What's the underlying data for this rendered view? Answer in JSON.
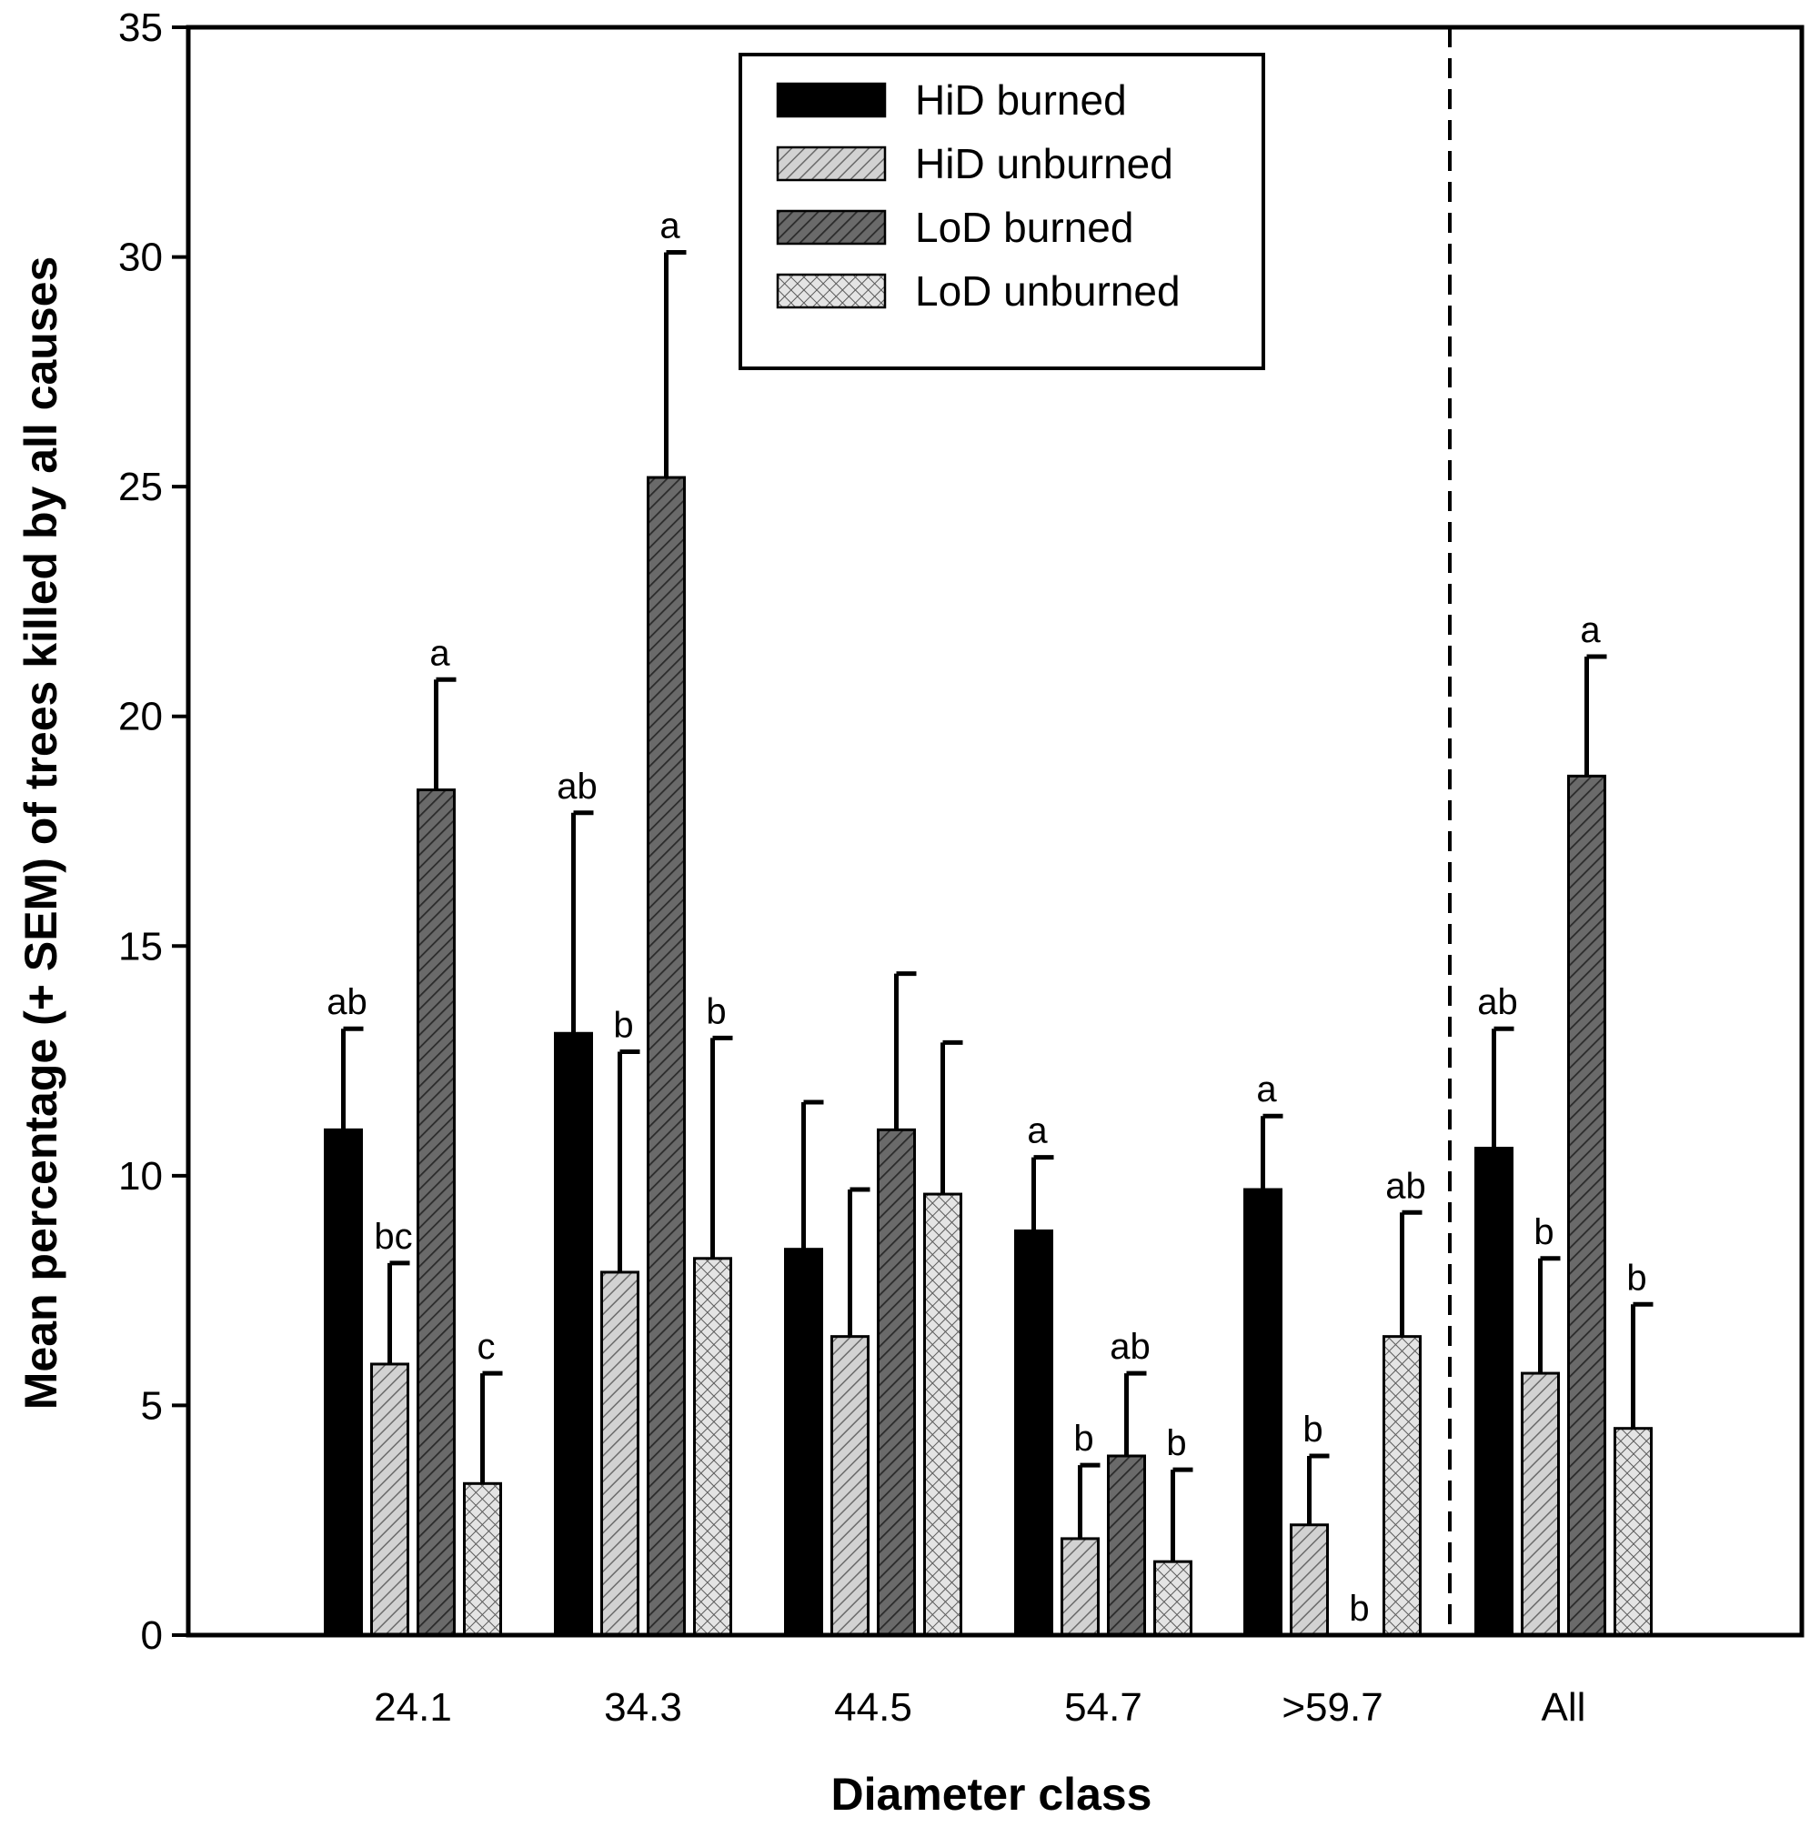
{
  "chart_data": {
    "type": "bar",
    "title": "",
    "xlabel": "Diameter class",
    "ylabel": "Mean percentage (+ SEM) of trees killed by all causes",
    "ylim": [
      0,
      35
    ],
    "yticks": [
      0,
      5,
      10,
      15,
      20,
      25,
      30,
      35
    ],
    "grid": false,
    "legend_position": "top-center",
    "categories": [
      "24.1",
      "34.3",
      "44.5",
      "54.7",
      ">59.7",
      "All"
    ],
    "separator_before_category": "All",
    "series": [
      {
        "name": "HiD burned",
        "fill": "#000000",
        "pattern": "solid",
        "values": [
          11.0,
          13.1,
          8.4,
          8.8,
          9.7,
          10.6
        ],
        "errors": [
          2.2,
          4.8,
          3.2,
          1.6,
          1.6,
          2.6
        ],
        "sig": [
          "ab",
          "ab",
          "",
          "a",
          "a",
          "ab"
        ]
      },
      {
        "name": "HiD unburned",
        "fill": "#c8c8c8",
        "pattern": "diagonal",
        "values": [
          5.9,
          7.9,
          6.5,
          2.1,
          2.4,
          5.7
        ],
        "errors": [
          2.2,
          4.8,
          3.2,
          1.6,
          1.5,
          2.5
        ],
        "sig": [
          "bc",
          "b",
          "",
          "b",
          "b",
          "b"
        ]
      },
      {
        "name": "LoD burned",
        "fill": "#505050",
        "pattern": "diagonal",
        "values": [
          18.4,
          25.2,
          11.0,
          3.9,
          0,
          18.7
        ],
        "errors": [
          2.4,
          4.9,
          3.4,
          1.8,
          0,
          2.6
        ],
        "sig": [
          "a",
          "a",
          "",
          "ab",
          "b",
          "a"
        ]
      },
      {
        "name": "LoD unburned",
        "fill": "#d8d8d8",
        "pattern": "crosshatch",
        "values": [
          3.3,
          8.2,
          9.6,
          1.6,
          6.5,
          4.5
        ],
        "errors": [
          2.4,
          4.8,
          3.3,
          2.0,
          2.7,
          2.7
        ],
        "sig": [
          "c",
          "b",
          "",
          "b",
          "ab",
          "b"
        ]
      }
    ]
  }
}
